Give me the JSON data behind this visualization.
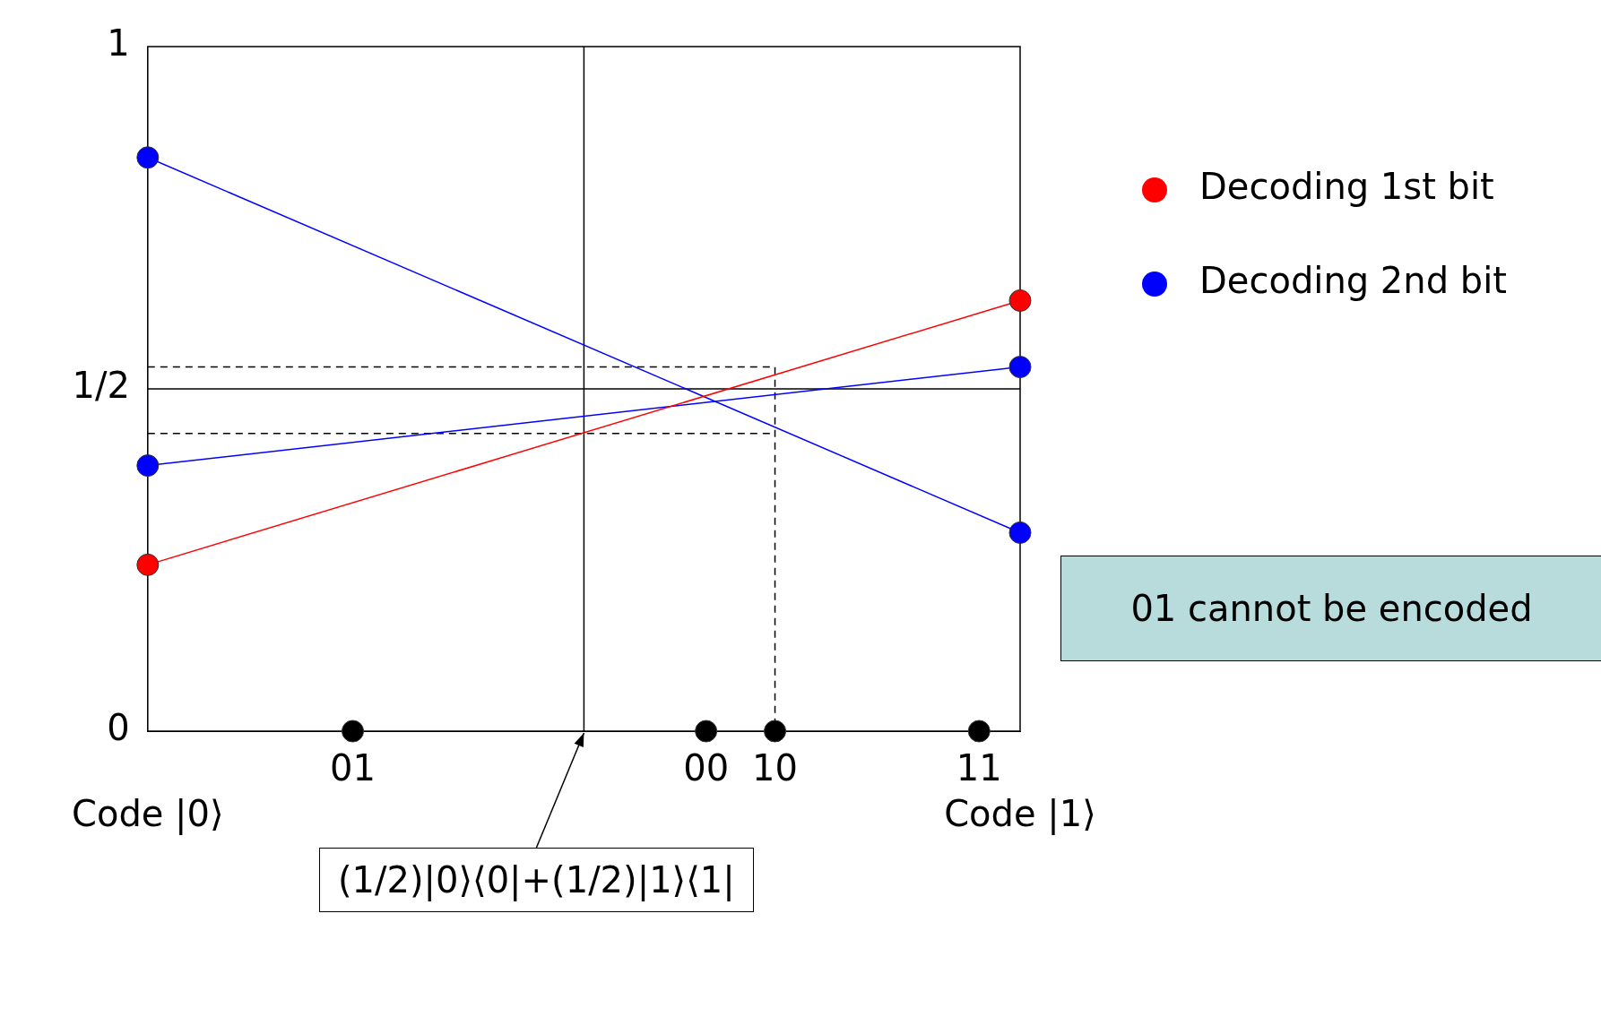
{
  "chart_data": {
    "type": "line",
    "xlim": [
      0,
      1
    ],
    "ylim": [
      0,
      1
    ],
    "xticks": [
      {
        "value": 0,
        "label": "Code |0⟩"
      },
      {
        "value": 1,
        "label": "Code |1⟩"
      }
    ],
    "yticks": [
      {
        "value": 0,
        "label": "0"
      },
      {
        "value": 0.5,
        "label": "1/2"
      },
      {
        "value": 1,
        "label": "1"
      }
    ],
    "grid": false,
    "legend": "right",
    "series": [
      {
        "name": "Decoding 1st bit",
        "color": "#ff0000",
        "x": [
          0,
          1
        ],
        "values": [
          0.243,
          0.629
        ],
        "marker": "circle"
      },
      {
        "name": "Decoding 2nd bit",
        "color": "#0000ff",
        "x": [
          0,
          1
        ],
        "values": [
          0.838,
          0.29
        ],
        "marker": "circle"
      },
      {
        "color": "#0000ff",
        "x": [
          0,
          1
        ],
        "values": [
          0.388,
          0.532
        ],
        "marker": "circle"
      },
      {
        "type": "scatter",
        "color": "#000000",
        "x": [
          0.235,
          0.64,
          0.719,
          0.953
        ],
        "values": [
          0,
          0,
          0,
          0
        ],
        "marker": "circle"
      },
      {
        "color": "#000000",
        "x": [
          0,
          0.719,
          0.719
        ],
        "values": [
          0.532,
          0.532,
          0
        ],
        "marker": "none",
        "line_style": "dashed"
      },
      {
        "color": "#000000",
        "x": [
          0,
          0.719
        ],
        "values": [
          0.435,
          0.435
        ],
        "marker": "none",
        "line_style": "dashed"
      },
      {
        "color": "#000000",
        "x": [
          0.5,
          0.5
        ],
        "values": [
          0,
          1
        ],
        "marker": "none"
      },
      {
        "color": "#000000",
        "x": [
          0,
          1
        ],
        "values": [
          0.5,
          0.5
        ],
        "marker": "none"
      }
    ],
    "annotations": [
      {
        "text": "01",
        "x": 0.235,
        "y": 0
      },
      {
        "text": "00",
        "x": 0.64,
        "y": 0
      },
      {
        "text": "10",
        "x": 0.719,
        "y": 0
      },
      {
        "text": "11",
        "x": 0.953,
        "y": 0
      },
      {
        "text": "(1/2)|0⟩⟨0|+(1/2)|1⟩⟨1|",
        "x": 0.5,
        "y": 0
      },
      "01 cannot be encoded"
    ]
  }
}
